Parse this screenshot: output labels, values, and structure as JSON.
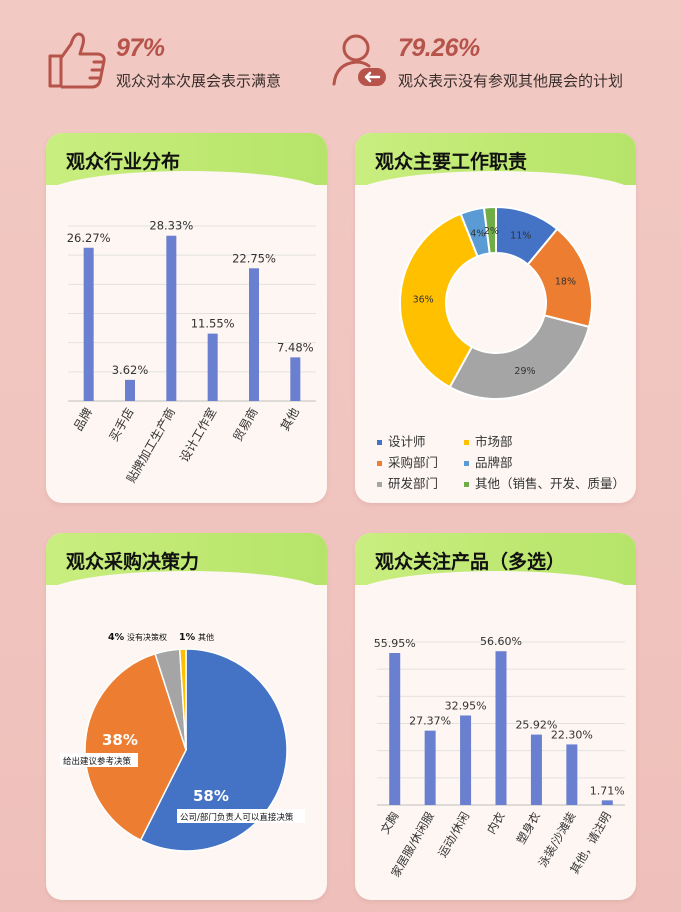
{
  "stats": [
    {
      "value": "97%",
      "text": "观众对本次展会表示满意",
      "icon": "thumbs-up-icon"
    },
    {
      "value": "79.26%",
      "text": "观众表示没有参观其他展会的计划",
      "icon": "user-return-icon"
    }
  ],
  "colors": {
    "accent": "#b6534a",
    "bar": "#6a7fcf",
    "header": "#c2eb78",
    "card": "#fdf6f3"
  },
  "chart_data": [
    {
      "id": "industry",
      "title": "观众行业分布",
      "type": "bar",
      "categories": [
        "品牌",
        "买手店",
        "贴牌加工生产商",
        "设计工作室",
        "贸易商",
        "其他"
      ],
      "values": [
        26.27,
        3.62,
        28.33,
        11.55,
        22.75,
        7.48
      ],
      "labels": [
        "26.27%",
        "3.62%",
        "28.33%",
        "11.55%",
        "22.75%",
        "7.48%"
      ],
      "ylim": [
        0,
        30
      ],
      "grid": true
    },
    {
      "id": "roles",
      "title": "观众主要工作职责",
      "type": "pie",
      "donut": true,
      "categories": [
        "设计师",
        "采购部门",
        "研发部门",
        "市场部",
        "品牌部",
        "其他（销售、开发、质量）"
      ],
      "values": [
        11,
        18,
        29,
        36,
        4,
        2
      ],
      "labels": [
        "11%",
        "18%",
        "29%",
        "36%",
        "4%",
        "2%"
      ],
      "colors": [
        "#4472c4",
        "#ed7d31",
        "#a5a5a5",
        "#ffc000",
        "#5b9bd5",
        "#70ad47"
      ],
      "legend_order": [
        "设计师",
        "市场部",
        "采购部门",
        "品牌部",
        "研发部门",
        "其他（销售、开发、质量）"
      ],
      "legend": "bottom"
    },
    {
      "id": "decision",
      "title": "观众采购决策力",
      "type": "pie",
      "categories": [
        "公司/部门负责人可以直接决策",
        "给出建议参考决策",
        "没有决策权",
        "其他"
      ],
      "values": [
        58,
        38,
        4,
        1
      ],
      "labels": [
        "58%",
        "38%",
        "4%",
        "1%"
      ],
      "colors": [
        "#4472c4",
        "#ed7d31",
        "#a5a5a5",
        "#ffc000"
      ]
    },
    {
      "id": "products",
      "title": "观众关注产品（多选）",
      "type": "bar",
      "categories": [
        "文胸",
        "家居服/休闲服",
        "运动/休闲",
        "内衣",
        "塑身衣",
        "泳装/沙滩装",
        "其他，请注明"
      ],
      "values": [
        55.95,
        27.37,
        32.95,
        56.6,
        25.92,
        22.3,
        1.71
      ],
      "labels": [
        "55.95%",
        "27.37%",
        "32.95%",
        "56.60%",
        "25.92%",
        "22.30%",
        "1.71%"
      ],
      "ylim": [
        0,
        60
      ],
      "grid": true
    }
  ]
}
